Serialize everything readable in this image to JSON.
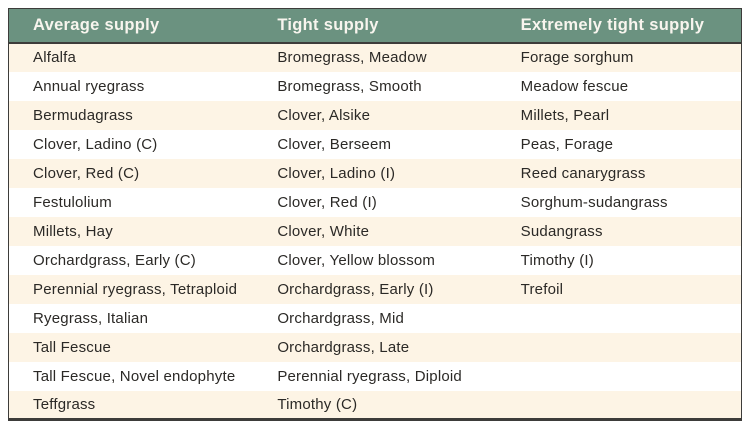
{
  "table": {
    "columns": [
      {
        "header": "Average supply",
        "items": [
          "Alfalfa",
          "Annual ryegrass",
          "Bermudagrass",
          "Clover, Ladino (C)",
          "Clover, Red (C)",
          "Festulolium",
          "Millets, Hay",
          "Orchardgrass, Early (C)",
          "Perennial ryegrass, Tetraploid",
          "Ryegrass, Italian",
          "Tall Fescue",
          "Tall Fescue, Novel endophyte",
          "Teffgrass"
        ]
      },
      {
        "header": "Tight supply",
        "items": [
          "Bromegrass, Meadow",
          "Bromegrass, Smooth",
          "Clover, Alsike",
          "Clover, Berseem",
          "Clover, Ladino (I)",
          "Clover, Red (I)",
          "Clover, White",
          "Clover, Yellow blossom",
          "Orchardgrass, Early (I)",
          "Orchardgrass, Mid",
          "Orchardgrass, Late",
          "Perennial ryegrass, Diploid",
          "Timothy (C)"
        ]
      },
      {
        "header": "Extremely tight supply",
        "items": [
          "Forage sorghum",
          "Meadow fescue",
          "Millets, Pearl",
          "Peas, Forage",
          "Reed canarygrass",
          "Sorghum-sudangrass",
          "Sudangrass",
          "Timothy (I)",
          "Trefoil",
          "",
          "",
          "",
          ""
        ]
      }
    ],
    "row_count": 13,
    "colors": {
      "header_bg": "#6b9280",
      "header_text": "#f8f5ee",
      "row_odd_bg": "#fdf4e5",
      "row_even_bg": "#ffffff",
      "body_text": "#2b2926",
      "border_dark": "#3d3c3a"
    }
  }
}
